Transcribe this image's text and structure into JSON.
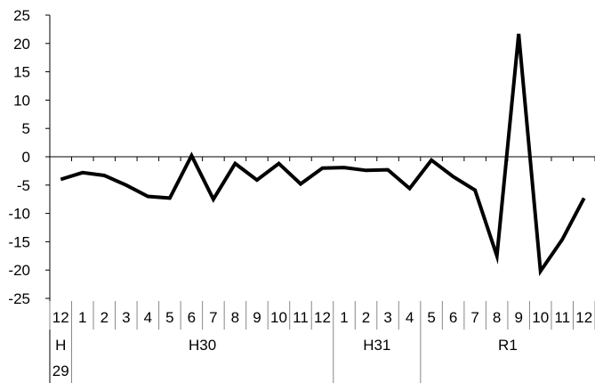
{
  "chart_data": {
    "type": "line",
    "title": "",
    "xlabel": "",
    "ylabel": "",
    "ylim": [
      -25,
      25
    ],
    "yticks": [
      25,
      20,
      15,
      10,
      5,
      0,
      -5,
      -10,
      -15,
      -20,
      -25
    ],
    "grid": false,
    "categories": [
      "12",
      "1",
      "2",
      "3",
      "4",
      "5",
      "6",
      "7",
      "8",
      "9",
      "10",
      "11",
      "12",
      "1",
      "2",
      "3",
      "4",
      "5",
      "6",
      "7",
      "8",
      "9",
      "10",
      "11",
      "12"
    ],
    "era_groups": [
      {
        "label": "H\n29",
        "start": 0,
        "end": 0
      },
      {
        "label": "H30",
        "start": 1,
        "end": 12
      },
      {
        "label": "H31",
        "start": 13,
        "end": 16
      },
      {
        "label": "R1",
        "start": 17,
        "end": 24
      }
    ],
    "series": [
      {
        "values": [
          -4.0,
          -2.8,
          -3.3,
          -5.0,
          -7.0,
          -7.3,
          0.2,
          -7.5,
          -1.2,
          -4.1,
          -1.2,
          -4.8,
          -2.0,
          -1.9,
          -2.4,
          -2.3,
          -5.6,
          -0.6,
          -3.5,
          -5.9,
          -17.5,
          21.7,
          -20.2,
          -14.6,
          -7.3
        ]
      }
    ],
    "line_color": "#000000"
  }
}
